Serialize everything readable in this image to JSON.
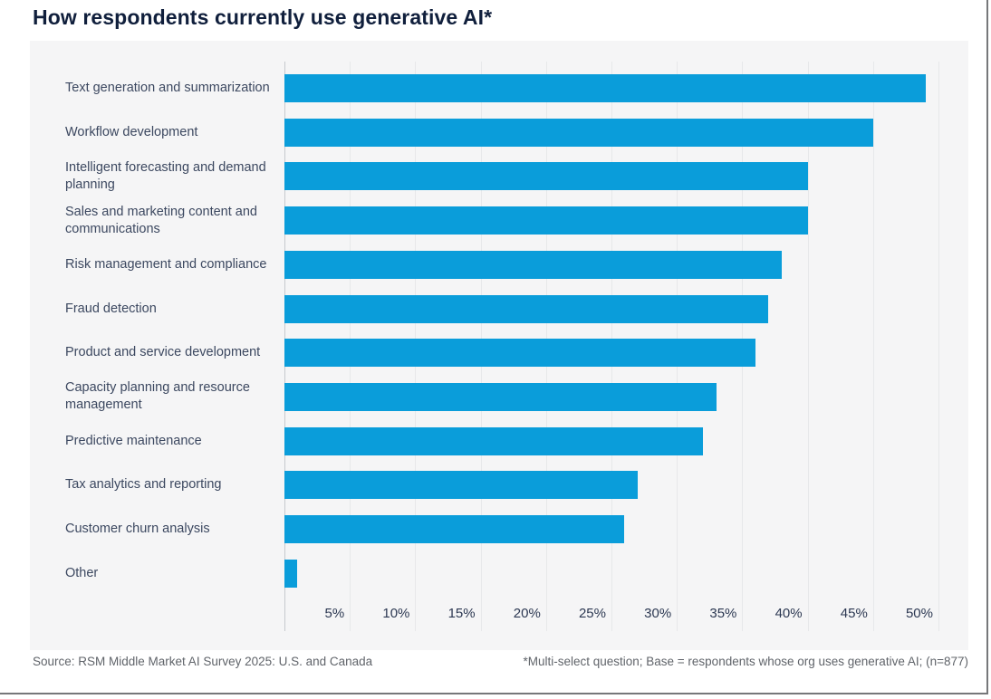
{
  "title": "How respondents currently use generative AI*",
  "footer": {
    "source": "Source: RSM Middle Market AI Survey 2025: U.S. and Canada",
    "note": "*Multi-select question; Base = respondents whose org uses generative AI; (n=877)"
  },
  "colors": {
    "bar": "#0a9dda",
    "title_text": "#101f3c",
    "label_text": "#3c4860",
    "tick_text": "#2c3852",
    "panel_background": "#f5f5f6",
    "gridline": "#e7e8ea",
    "footer_text": "#60646a"
  },
  "chart_data": {
    "type": "bar",
    "orientation": "horizontal",
    "title": "How respondents currently use generative AI*",
    "categories": [
      "Text generation and summarization",
      "Workflow development",
      "Intelligent forecasting and demand planning",
      "Sales and marketing content and communications",
      "Risk management and compliance",
      "Fraud detection",
      "Product and service development",
      "Capacity planning and resource management",
      "Predictive maintenance",
      "Tax analytics and reporting",
      "Customer churn analysis",
      "Other"
    ],
    "values": [
      49,
      45,
      40,
      40,
      38,
      37,
      36,
      33,
      32,
      27,
      26,
      1
    ],
    "unit": "%",
    "xlabel": "",
    "ylabel": "",
    "xlim": [
      0,
      52
    ],
    "x_tick_labels": [
      "5%",
      "10%",
      "15%",
      "20%",
      "25%",
      "30%",
      "35%",
      "40%",
      "45%",
      "50%"
    ],
    "x_tick_values": [
      5,
      10,
      15,
      20,
      25,
      30,
      35,
      40,
      45,
      50
    ],
    "grid": "vertical",
    "legend": "none"
  }
}
